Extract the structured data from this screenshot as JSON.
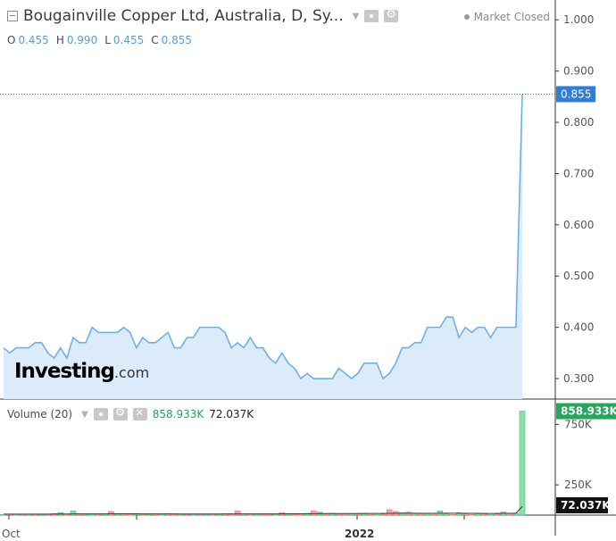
{
  "header": {
    "title": "Bougainville Copper Ltd, Australia, D, Sy...",
    "market_status": "Market Closed",
    "ohlc": [
      {
        "key": "O",
        "value": "0.455"
      },
      {
        "key": "H",
        "value": "0.990"
      },
      {
        "key": "L",
        "value": "0.455"
      },
      {
        "key": "C",
        "value": "0.855"
      }
    ]
  },
  "volume_header": {
    "label": "Volume (20)",
    "value_volume": "858.933K",
    "value_ma": "72.037K"
  },
  "logo": {
    "brand": "Investing",
    "suffix": ".com"
  },
  "colors": {
    "price_line": "#6fb0e6",
    "price_fill": "#dcebf9",
    "up_volume": "#8fdcad",
    "down_volume": "#f2a6a6",
    "volume_ma_line": "#3d3d3d",
    "last_value_tag": "#2f7ed8",
    "volume_value_tag": "#26a65b",
    "ma_value_tag": "#111111"
  },
  "chart_data": [
    {
      "type": "area",
      "title": "Bougainville Copper Ltd, Australia, D",
      "y_axis_position": "right",
      "ylim": [
        0.26,
        1.03
      ],
      "y_ticks": [
        "1.000",
        "0.900",
        "0.800",
        "0.700",
        "0.600",
        "0.500",
        "0.400",
        "0.300"
      ],
      "last_value_label": "0.855",
      "values": [
        0.36,
        0.35,
        0.36,
        0.36,
        0.36,
        0.37,
        0.37,
        0.35,
        0.34,
        0.36,
        0.34,
        0.38,
        0.37,
        0.37,
        0.4,
        0.39,
        0.39,
        0.39,
        0.39,
        0.4,
        0.39,
        0.36,
        0.38,
        0.37,
        0.37,
        0.38,
        0.39,
        0.36,
        0.36,
        0.38,
        0.38,
        0.4,
        0.4,
        0.4,
        0.4,
        0.39,
        0.36,
        0.37,
        0.36,
        0.38,
        0.36,
        0.36,
        0.34,
        0.33,
        0.35,
        0.33,
        0.32,
        0.3,
        0.31,
        0.3,
        0.3,
        0.3,
        0.3,
        0.32,
        0.31,
        0.3,
        0.31,
        0.33,
        0.33,
        0.33,
        0.3,
        0.31,
        0.33,
        0.36,
        0.36,
        0.37,
        0.37,
        0.4,
        0.4,
        0.4,
        0.42,
        0.42,
        0.38,
        0.4,
        0.39,
        0.4,
        0.4,
        0.38,
        0.4,
        0.4,
        0.4,
        0.4,
        0.855
      ]
    },
    {
      "type": "bar",
      "title": "Volume (20)",
      "y_axis_position": "right",
      "y_ticks": [
        "750K",
        "250K"
      ],
      "ylim": [
        0,
        900000
      ],
      "series": [
        {
          "name": "Volume",
          "values": [
            5000,
            4000,
            6000,
            8000,
            5000,
            9000,
            4000,
            7000,
            12000,
            20000,
            6000,
            35000,
            10000,
            8000,
            6000,
            9000,
            8000,
            30000,
            7000,
            9000,
            6000,
            8000,
            5000,
            7000,
            9000,
            6000,
            10000,
            7000,
            5000,
            8000,
            6000,
            9000,
            7000,
            6000,
            5000,
            8000,
            7000,
            35000,
            9000,
            6000,
            7000,
            5000,
            8000,
            6000,
            20000,
            9000,
            7000,
            6000,
            15000,
            35000,
            25000,
            10000,
            15000,
            8000,
            7000,
            12000,
            15000,
            9000,
            7000,
            6000,
            9000,
            45000,
            30000,
            20000,
            25000,
            10000,
            8000,
            12000,
            7000,
            35000,
            10000,
            6000,
            20000,
            9000,
            6000,
            12000,
            10000,
            6000,
            9000,
            25000,
            15000,
            18000,
            858933
          ]
        },
        {
          "name": "MA",
          "values": [
            8000,
            8000,
            8000,
            8000,
            8000,
            8000,
            8000,
            8000,
            9000,
            9000,
            9000,
            10000,
            10000,
            10000,
            10000,
            10000,
            10000,
            11000,
            11000,
            11000,
            11000,
            11000,
            10000,
            10000,
            10000,
            10000,
            10000,
            10000,
            9000,
            9000,
            9000,
            9000,
            9000,
            9000,
            9000,
            10000,
            10000,
            10000,
            10000,
            10000,
            10000,
            10000,
            10000,
            10000,
            10000,
            11000,
            11000,
            11000,
            11000,
            12000,
            12000,
            13000,
            13000,
            13000,
            13000,
            13000,
            13000,
            14000,
            14000,
            14000,
            14000,
            15000,
            15000,
            16000,
            16000,
            16000,
            15000,
            15000,
            15000,
            16000,
            16000,
            16000,
            16000,
            15000,
            15000,
            15000,
            14000,
            14000,
            14000,
            15000,
            15000,
            15000,
            72037
          ]
        }
      ],
      "up_flags": [
        1,
        0,
        1,
        0,
        1,
        0,
        1,
        0,
        0,
        1,
        0,
        1,
        0,
        1,
        1,
        0,
        1,
        0,
        1,
        0,
        0,
        1,
        0,
        1,
        0,
        1,
        0,
        0,
        1,
        0,
        1,
        0,
        1,
        0,
        1,
        0,
        0,
        0,
        1,
        0,
        1,
        0,
        0,
        1,
        0,
        1,
        0,
        0,
        1,
        0,
        1,
        0,
        1,
        0,
        0,
        1,
        0,
        1,
        0,
        1,
        0,
        0,
        0,
        1,
        0,
        1,
        0,
        1,
        0,
        1,
        1,
        0,
        1,
        0,
        0,
        1,
        0,
        1,
        0,
        1,
        0,
        1,
        1
      ],
      "last_volume_label": "858.933K",
      "last_ma_label": "72.037K"
    }
  ],
  "x_axis": {
    "labels": [
      "Oct",
      "2022"
    ]
  }
}
